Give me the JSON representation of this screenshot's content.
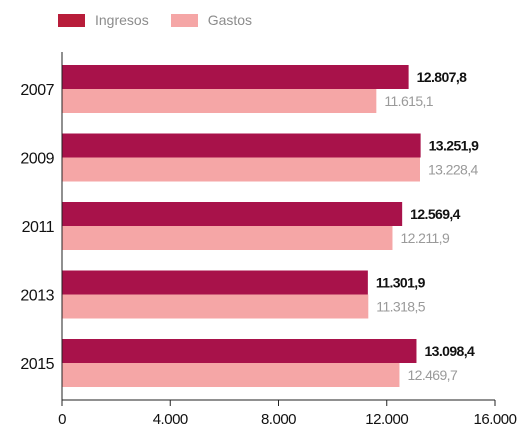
{
  "chart_data": {
    "type": "bar",
    "orientation": "horizontal",
    "categories": [
      "2007",
      "2009",
      "2011",
      "2013",
      "2015"
    ],
    "series": [
      {
        "name": "Ingresos",
        "color": "#a8124a",
        "values": [
          12807.8,
          13251.9,
          12569.4,
          11301.9,
          13098.4
        ],
        "labels": [
          "12.807,8",
          "13.251,9",
          "12.569,4",
          "11.301,9",
          "13.098,4"
        ]
      },
      {
        "name": "Gastos",
        "color": "#f5a6a6",
        "values": [
          11615.1,
          13228.4,
          12211.9,
          11318.5,
          12469.7
        ],
        "labels": [
          "11.615,1",
          "13.228,4",
          "12.211,9",
          "11.318,5",
          "12.469,7"
        ]
      }
    ],
    "xlim": [
      0,
      16000
    ],
    "xticks": [
      0,
      4000,
      8000,
      12000,
      16000
    ],
    "xtick_labels": [
      "0",
      "4.000",
      "8.000",
      "12.000",
      "16.000"
    ],
    "legend_position": "top-left",
    "grid": false,
    "legend_swatch_colors": [
      "#a8124a",
      "#f5a6a6"
    ]
  }
}
